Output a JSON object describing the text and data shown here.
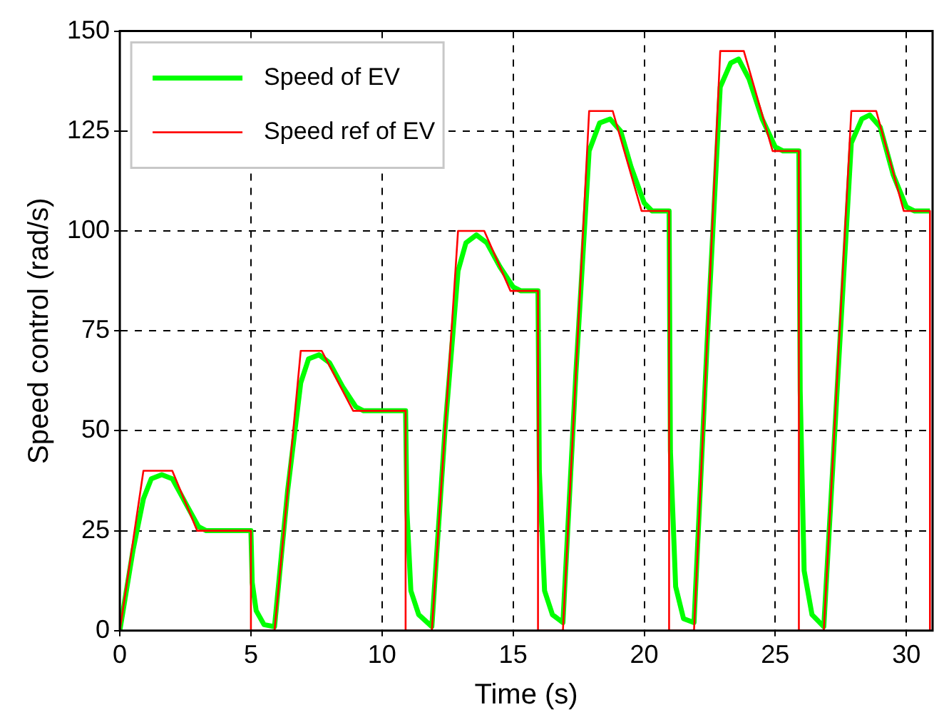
{
  "chart_data": {
    "type": "line",
    "xlabel": "Time (s)",
    "ylabel": "Speed control (rad/s)",
    "xlim": [
      0,
      31
    ],
    "xticks": [
      0,
      5,
      10,
      15,
      20,
      25,
      30
    ],
    "ylim": [
      0,
      150
    ],
    "yticks": [
      0,
      25,
      50,
      75,
      100,
      125,
      150
    ],
    "grid": true,
    "legend": "top left",
    "line_style": "solid",
    "series": [
      {
        "name": "Speed of EV",
        "color": "#00ff00",
        "x": [
          0,
          0.5,
          0.9,
          1.2,
          1.6,
          2.0,
          2.5,
          3.0,
          3.3,
          5.0,
          5.05,
          5.2,
          5.5,
          5.9,
          6.4,
          6.9,
          7.2,
          7.6,
          8.0,
          8.5,
          9.0,
          9.3,
          10.9,
          10.95,
          11.1,
          11.4,
          11.9,
          12.4,
          12.9,
          13.2,
          13.6,
          14.0,
          14.5,
          15.0,
          15.3,
          15.95,
          16.0,
          16.2,
          16.5,
          16.9,
          17.4,
          17.9,
          18.3,
          18.7,
          19.1,
          19.5,
          20.0,
          20.3,
          20.95,
          21.0,
          21.2,
          21.5,
          21.9,
          22.4,
          22.9,
          23.3,
          23.6,
          24.0,
          24.5,
          25.0,
          25.3,
          25.9,
          25.95,
          26.1,
          26.4,
          26.85,
          27.4,
          27.9,
          28.3,
          28.6,
          29.0,
          29.5,
          30.0,
          30.3,
          30.9
        ],
        "values": [
          0,
          20,
          33,
          38,
          39,
          38,
          32,
          26,
          25,
          25,
          12,
          5,
          1.5,
          1,
          35,
          62,
          68,
          69,
          67,
          61,
          56,
          55,
          55,
          30,
          10,
          4,
          1,
          50,
          90,
          97,
          99,
          97,
          91,
          86,
          85,
          85,
          40,
          10,
          4,
          2,
          65,
          120,
          127,
          128,
          125,
          116,
          107,
          105,
          105,
          45,
          11,
          3,
          2,
          72,
          136,
          142,
          143,
          138,
          128,
          121,
          120,
          120,
          60,
          15,
          4,
          1,
          65,
          122,
          128,
          129,
          126,
          114,
          106,
          105,
          105
        ]
      },
      {
        "name": "Speed ref of EV",
        "color": "#ff0000",
        "x": [
          0,
          0.9,
          2,
          2.95,
          5,
          5,
          5.9,
          6.9,
          7.7,
          8.9,
          10.9,
          10.9,
          11.9,
          12.9,
          13.9,
          14.9,
          15.95,
          15.95,
          16.9,
          17.9,
          18.8,
          19.9,
          20.95,
          20.95,
          21.9,
          22.9,
          23.8,
          24.9,
          25.9,
          25.9,
          26.85,
          27.9,
          28.85,
          29.9,
          30.9,
          30.9
        ],
        "values": [
          0,
          40,
          40,
          25,
          25,
          0,
          0,
          70,
          70,
          55,
          55,
          0,
          0,
          100,
          100,
          85,
          85,
          0,
          0,
          130,
          130,
          105,
          105,
          0,
          0,
          145,
          145,
          120,
          120,
          0,
          0,
          130,
          130,
          105,
          105,
          0
        ]
      }
    ]
  }
}
